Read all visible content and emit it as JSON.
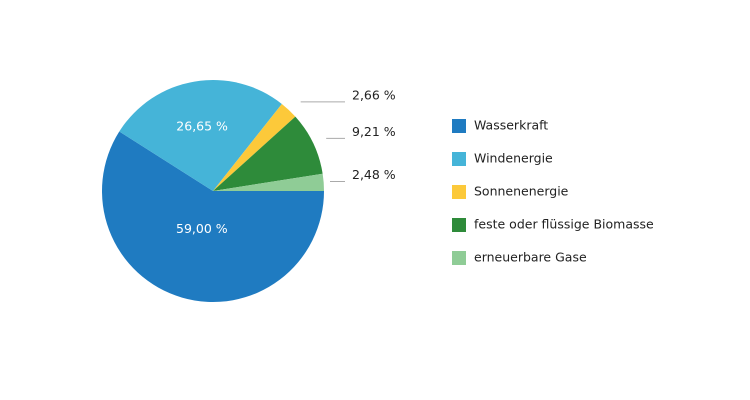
{
  "chart_data": {
    "type": "pie",
    "categories": [
      "Wasserkraft",
      "Windenergie",
      "Sonnenenergie",
      "feste oder flüssige Biomasse",
      "erneuerbare Gase"
    ],
    "values": [
      59.0,
      26.65,
      2.66,
      9.21,
      2.48
    ],
    "value_labels": [
      "59,00 %",
      "26,65 %",
      "2,66 %",
      "9,21 %",
      "2,48 %"
    ],
    "colors": [
      "#1f7bc1",
      "#45b4d8",
      "#fcc93a",
      "#2e8b3a",
      "#8fcc96"
    ],
    "legend": "right"
  }
}
